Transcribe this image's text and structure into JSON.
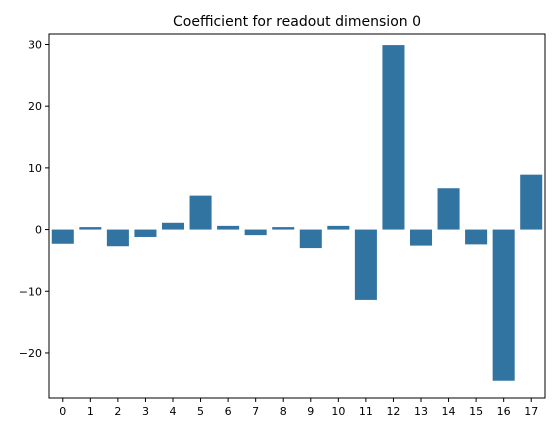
{
  "chart_data": {
    "type": "bar",
    "title": "Coefficient for readout dimension 0",
    "xlabel": "",
    "ylabel": "",
    "categories": [
      "0",
      "1",
      "2",
      "3",
      "4",
      "5",
      "6",
      "7",
      "8",
      "9",
      "10",
      "11",
      "12",
      "13",
      "14",
      "15",
      "16",
      "17"
    ],
    "values": [
      -2.3,
      0.4,
      -2.7,
      -1.2,
      1.1,
      5.5,
      0.6,
      -0.9,
      0.4,
      -3.0,
      0.6,
      -11.4,
      29.9,
      -2.6,
      6.7,
      -2.4,
      -24.5,
      8.9
    ],
    "ylim": [
      -27.3,
      31.7
    ],
    "yticks": [
      -20,
      -10,
      0,
      10,
      20,
      30
    ],
    "grid": false,
    "legend": "none",
    "bar_color": "#3274a1"
  }
}
